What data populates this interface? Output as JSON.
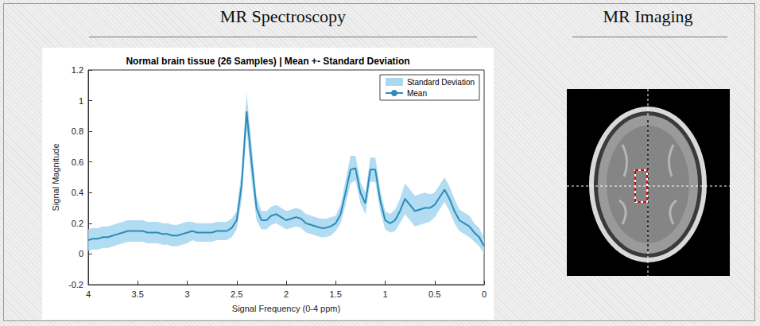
{
  "headings": {
    "left": "MR Spectroscopy",
    "right": "MR Imaging"
  },
  "chart_data": {
    "type": "line",
    "title": "Normal brain tissue (26 Samples) | Mean +- Standard Deviation",
    "x_label": "Signal Frequency (0-4 ppm)",
    "y_label": "Signal Magnitude",
    "x": [
      4,
      3.95,
      3.9,
      3.85,
      3.8,
      3.75,
      3.7,
      3.65,
      3.6,
      3.55,
      3.5,
      3.45,
      3.4,
      3.35,
      3.3,
      3.25,
      3.2,
      3.15,
      3.1,
      3.05,
      3,
      2.95,
      2.9,
      2.85,
      2.8,
      2.75,
      2.7,
      2.65,
      2.6,
      2.55,
      2.5,
      2.45,
      2.4,
      2.35,
      2.3,
      2.25,
      2.2,
      2.15,
      2.1,
      2.05,
      2,
      1.95,
      1.9,
      1.85,
      1.8,
      1.75,
      1.7,
      1.65,
      1.6,
      1.55,
      1.5,
      1.45,
      1.4,
      1.35,
      1.3,
      1.25,
      1.2,
      1.15,
      1.1,
      1.05,
      1,
      0.95,
      0.9,
      0.85,
      0.8,
      0.75,
      0.7,
      0.65,
      0.6,
      0.55,
      0.5,
      0.45,
      0.4,
      0.35,
      0.3,
      0.25,
      0.2,
      0.15,
      0.1,
      0.05,
      0
    ],
    "series": [
      {
        "name": "Standard Deviation",
        "type": "band",
        "color": "#a9d8ef",
        "values": [
          0.07,
          0.07,
          0.07,
          0.07,
          0.07,
          0.07,
          0.07,
          0.07,
          0.07,
          0.07,
          0.07,
          0.07,
          0.07,
          0.07,
          0.07,
          0.07,
          0.07,
          0.07,
          0.07,
          0.07,
          0.07,
          0.06,
          0.06,
          0.06,
          0.06,
          0.06,
          0.06,
          0.06,
          0.06,
          0.06,
          0.06,
          0.1,
          0.12,
          0.12,
          0.08,
          0.06,
          0.06,
          0.06,
          0.06,
          0.06,
          0.06,
          0.06,
          0.06,
          0.06,
          0.06,
          0.06,
          0.06,
          0.06,
          0.06,
          0.06,
          0.05,
          0.06,
          0.08,
          0.09,
          0.08,
          0.07,
          0.07,
          0.08,
          0.08,
          0.07,
          0.06,
          0.06,
          0.07,
          0.08,
          0.1,
          0.1,
          0.1,
          0.1,
          0.1,
          0.09,
          0.08,
          0.08,
          0.08,
          0.08,
          0.08,
          0.07,
          0.07,
          0.07,
          0.06,
          0.06,
          0.05
        ]
      },
      {
        "name": "Mean",
        "type": "line",
        "color": "#2c8bb9",
        "values": [
          0.09,
          0.1,
          0.1,
          0.11,
          0.11,
          0.12,
          0.13,
          0.14,
          0.15,
          0.15,
          0.15,
          0.15,
          0.14,
          0.14,
          0.14,
          0.13,
          0.13,
          0.12,
          0.12,
          0.13,
          0.14,
          0.15,
          0.14,
          0.14,
          0.14,
          0.14,
          0.15,
          0.15,
          0.15,
          0.17,
          0.22,
          0.45,
          0.93,
          0.6,
          0.3,
          0.22,
          0.22,
          0.25,
          0.26,
          0.24,
          0.22,
          0.23,
          0.24,
          0.23,
          0.2,
          0.19,
          0.18,
          0.17,
          0.17,
          0.18,
          0.2,
          0.26,
          0.4,
          0.55,
          0.56,
          0.4,
          0.33,
          0.55,
          0.55,
          0.35,
          0.22,
          0.2,
          0.22,
          0.28,
          0.36,
          0.32,
          0.28,
          0.29,
          0.3,
          0.3,
          0.32,
          0.37,
          0.42,
          0.36,
          0.28,
          0.22,
          0.2,
          0.18,
          0.14,
          0.11,
          0.05
        ]
      }
    ],
    "xlim": [
      4,
      0
    ],
    "xticks": [
      4,
      3.5,
      3,
      2.5,
      2,
      1.5,
      1,
      0.5,
      0
    ],
    "ylim": [
      -0.2,
      1.2
    ],
    "yticks": [
      -0.2,
      0,
      0.2,
      0.4,
      0.6,
      0.8,
      1,
      1.2
    ],
    "grid": false,
    "legend": "northeast"
  }
}
